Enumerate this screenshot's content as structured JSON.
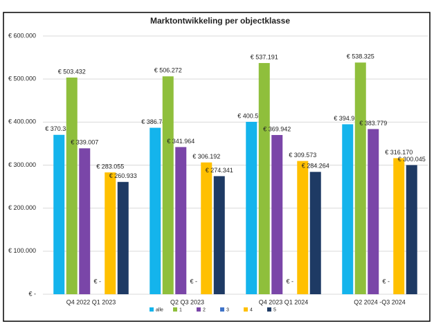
{
  "chart_data": {
    "type": "bar",
    "title": "Marktontwikkeling per objectklasse",
    "categories": [
      "Q4 2022 Q1 2023",
      "Q2 Q3 2023",
      "Q4 2023 Q1 2024",
      "Q2 2024 -Q3 2024"
    ],
    "series": [
      {
        "name": "alle",
        "color": "#14b4ec",
        "values": [
          370341,
          386748,
          400596,
          394935
        ],
        "value_labels": [
          "€ 370.341",
          "€ 386.748",
          "€ 400.596",
          "€ 394.935"
        ]
      },
      {
        "name": "1",
        "color": "#8fbf3c",
        "values": [
          503432,
          506272,
          537191,
          538325
        ],
        "value_labels": [
          "€ 503.432",
          "€ 506.272",
          "€ 537.191",
          "€ 538.325"
        ]
      },
      {
        "name": "2",
        "color": "#7a46a8",
        "values": [
          339007,
          341964,
          369942,
          383779
        ],
        "value_labels": [
          "€ 339.007",
          "€ 341.964",
          "€ 369.942",
          "€ 383.779"
        ]
      },
      {
        "name": "3",
        "color": "#3f73c8",
        "values": [
          0,
          0,
          0,
          0
        ],
        "value_labels": [
          "€ -",
          "€ -",
          "€ -",
          "€ -"
        ]
      },
      {
        "name": "4",
        "color": "#ffc000",
        "values": [
          283055,
          306192,
          309573,
          316170
        ],
        "value_labels": [
          "€ 283.055",
          "€ 306.192",
          "€ 309.573",
          "€ 316.170"
        ]
      },
      {
        "name": "5",
        "color": "#1e3a64",
        "values": [
          260933,
          274341,
          284264,
          300045
        ],
        "value_labels": [
          "€ 260.933",
          "€ 274.341",
          "€ 284.264",
          "€ 300.045"
        ]
      }
    ],
    "ylim": [
      0,
      600000
    ],
    "yticks": [
      {
        "value": 0,
        "label": "€ -"
      },
      {
        "value": 100000,
        "label": "€ 100.000"
      },
      {
        "value": 200000,
        "label": "€ 200.000"
      },
      {
        "value": 300000,
        "label": "€ 300.000"
      },
      {
        "value": 400000,
        "label": "€ 400.000"
      },
      {
        "value": 500000,
        "label": "€ 500.000"
      },
      {
        "value": 600000,
        "label": "€ 600.000"
      }
    ],
    "grid": true,
    "legend": "bottom"
  }
}
